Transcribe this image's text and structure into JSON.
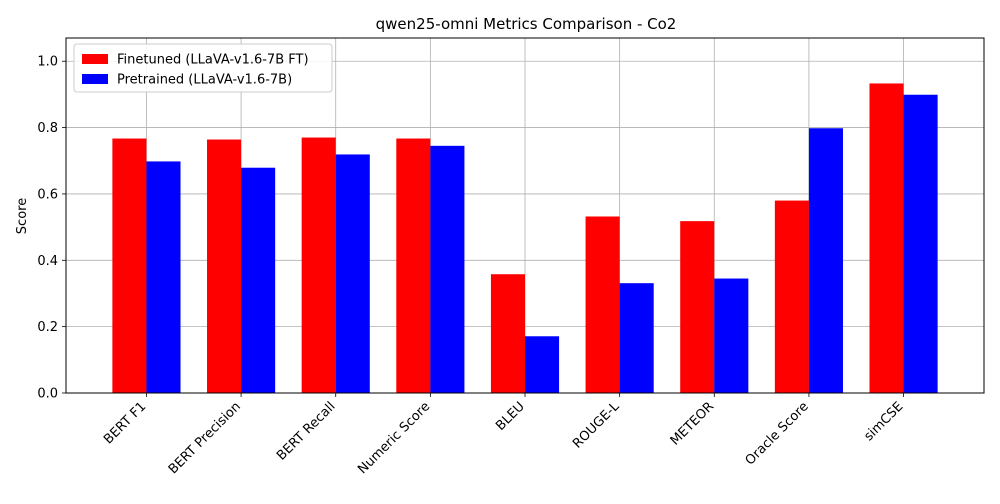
{
  "chart_data": {
    "type": "bar",
    "title": "qwen25-omni Metrics Comparison - Co2",
    "xlabel": "",
    "ylabel": "Score",
    "ylim": [
      0,
      1.07
    ],
    "yticks": [
      "0.0",
      "0.2",
      "0.4",
      "0.6",
      "0.8",
      "1.0"
    ],
    "ytick_values": [
      0,
      0.2,
      0.4,
      0.6,
      0.8,
      1.0
    ],
    "grid": true,
    "legend_position": "top-left",
    "categories": [
      "BERT F1",
      "BERT Precision",
      "BERT Recall",
      "Numeric Score",
      "BLEU",
      "ROUGE-L",
      "METEOR",
      "Oracle Score",
      "simCSE"
    ],
    "series": [
      {
        "name": "Finetuned (LLaVA-v1.6-7B FT)",
        "color": "#ff0000",
        "values": [
          0.767,
          0.764,
          0.77,
          0.767,
          0.358,
          0.532,
          0.518,
          0.58,
          0.933
        ]
      },
      {
        "name": "Pretrained (LLaVA-v1.6-7B)",
        "color": "#0000ff",
        "values": [
          0.698,
          0.679,
          0.719,
          0.745,
          0.171,
          0.331,
          0.345,
          0.798,
          0.899
        ]
      }
    ]
  }
}
